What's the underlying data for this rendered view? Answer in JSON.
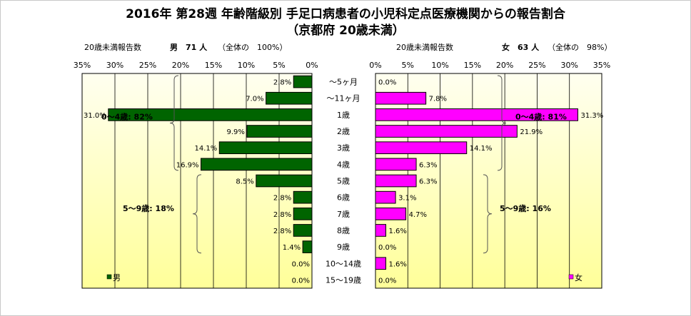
{
  "title_line1": "2016年 第28週 年齢階級別 手足口病患者の小児科定点医療機関からの報告割合",
  "title_line2": "（京都府 20歳未満）",
  "chart_data": {
    "type": "bar",
    "orientation": "horizontal-pyramid",
    "categories": [
      "～5ヶ月",
      "～11ヶ月",
      "1歳",
      "2歳",
      "3歳",
      "4歳",
      "5歳",
      "6歳",
      "7歳",
      "8歳",
      "9歳",
      "10～14歳",
      "15～19歳"
    ],
    "xlim": [
      0,
      35
    ],
    "xticks": [
      "0%",
      "5%",
      "10%",
      "15%",
      "20%",
      "25%",
      "30%",
      "35%"
    ],
    "series": [
      {
        "name": "男",
        "header_label": "20歳未満報告数",
        "header_count": "男　71 人",
        "header_share": "（全体の　100%）",
        "color": "#006400",
        "values": [
          2.8,
          7.0,
          31.0,
          9.9,
          14.1,
          16.9,
          8.5,
          2.8,
          2.8,
          2.8,
          1.4,
          0.0,
          0.0
        ],
        "value_labels": [
          "2.8%",
          "7.0%",
          "31.0%",
          "9.9%",
          "14.1%",
          "16.9%",
          "8.5%",
          "2.8%",
          "2.8%",
          "2.8%",
          "1.4%",
          "0.0%",
          "0.0%"
        ],
        "brackets": [
          {
            "label": "0～4歳: 82%",
            "from": 0,
            "to": 5
          },
          {
            "label": "5～9歳: 18%",
            "from": 6,
            "to": 10
          }
        ]
      },
      {
        "name": "女",
        "header_label": "20歳未満報告数",
        "header_count": "女　63 人",
        "header_share": "（全体の　98%）",
        "color": "#ff00ff",
        "values": [
          0.0,
          7.8,
          31.3,
          21.9,
          14.1,
          6.3,
          6.3,
          3.1,
          4.7,
          1.6,
          0.0,
          1.6,
          0.0
        ],
        "value_labels": [
          "0.0%",
          "7.8%",
          "31.3%",
          "21.9%",
          "14.1%",
          "6.3%",
          "6.3%",
          "3.1%",
          "4.7%",
          "1.6%",
          "0.0%",
          "1.6%",
          "0.0%"
        ],
        "brackets": [
          {
            "label": "0～4歳: 81%",
            "from": 0,
            "to": 5
          },
          {
            "label": "5～9歳: 16%",
            "from": 6,
            "to": 10
          }
        ]
      }
    ],
    "legend": "bottom-left (男), bottom-right (女)"
  }
}
